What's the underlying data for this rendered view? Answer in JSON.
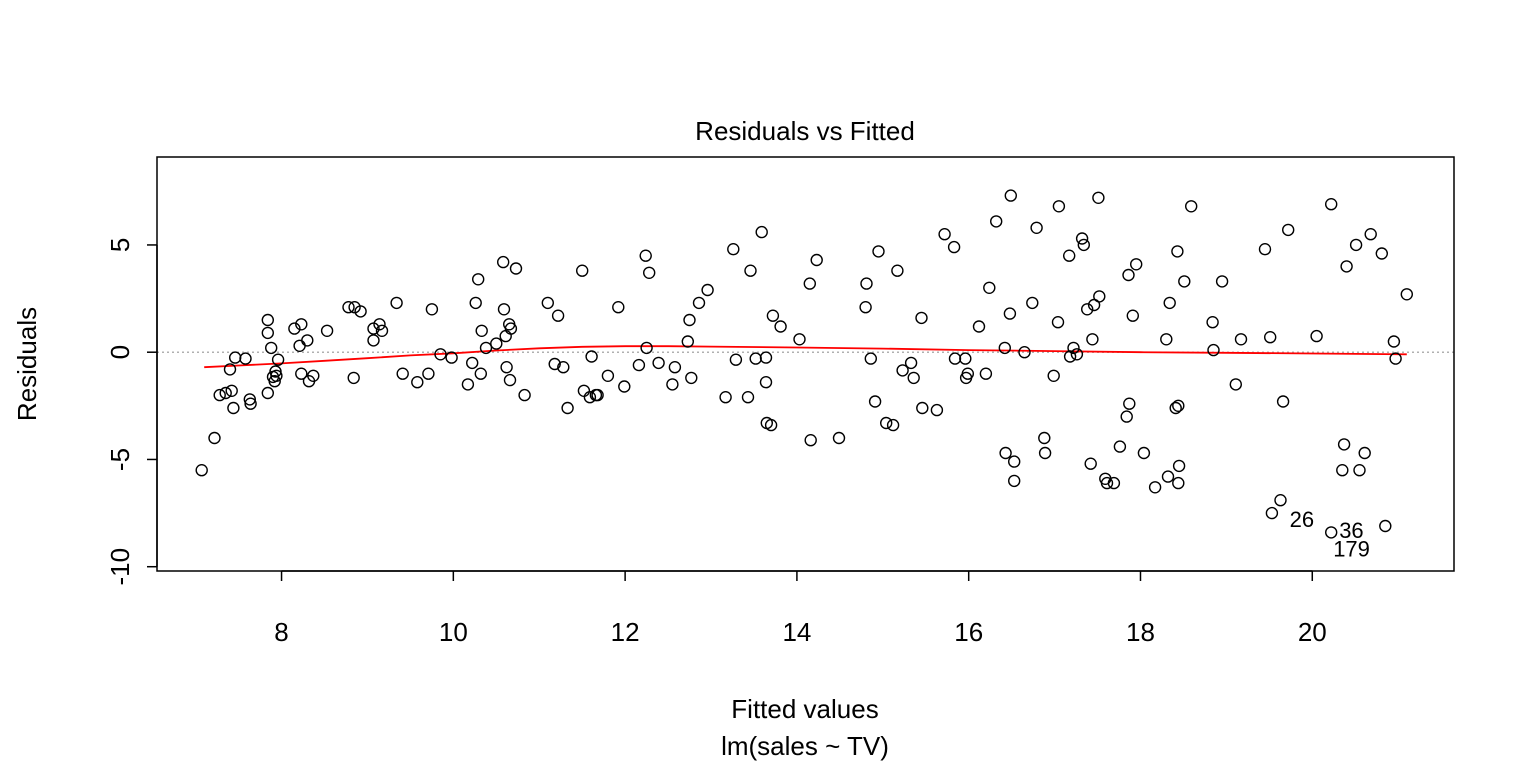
{
  "chart_data": {
    "type": "scatter",
    "title": "Residuals vs Fitted",
    "xlabel": "Fitted values",
    "sublabel": "lm(sales ~ TV)",
    "ylabel": "Residuals",
    "xlim": [
      6.55,
      21.65
    ],
    "ylim": [
      -10.2,
      9.1
    ],
    "xticks": [
      8,
      10,
      12,
      14,
      16,
      18,
      20
    ],
    "yticks": [
      -10,
      -5,
      0,
      5
    ],
    "grid": false,
    "reference_line": {
      "y": 0,
      "style": "dotted",
      "color": "#b0b0b0"
    },
    "colors": {
      "points": "#000000",
      "smooth": "#ff0000",
      "box": "#000000"
    },
    "smooth": {
      "x": [
        7.1,
        7.5,
        8.0,
        8.5,
        9.0,
        9.5,
        10.0,
        10.5,
        11.0,
        11.5,
        12.0,
        12.5,
        13.0,
        14.0,
        15.0,
        16.0,
        17.0,
        18.0,
        19.0,
        20.0,
        20.5,
        21.1
      ],
      "y": [
        -0.7,
        -0.62,
        -0.52,
        -0.4,
        -0.28,
        -0.15,
        -0.05,
        0.08,
        0.18,
        0.25,
        0.28,
        0.28,
        0.26,
        0.22,
        0.17,
        0.1,
        0.05,
        0.0,
        -0.03,
        -0.06,
        -0.08,
        -0.1
      ]
    },
    "labeled_points": [
      {
        "label": "26",
        "x": 19.62,
        "y": -7.6
      },
      {
        "label": "36",
        "x": 20.22,
        "y": -8.3
      },
      {
        "label": "179",
        "x": 20.22,
        "y": -8.6
      }
    ],
    "points": [
      [
        7.07,
        -5.5
      ],
      [
        7.22,
        -4.0
      ],
      [
        7.28,
        -2.0
      ],
      [
        7.35,
        -1.9
      ],
      [
        7.4,
        -0.8
      ],
      [
        7.42,
        -1.8
      ],
      [
        7.44,
        -2.6
      ],
      [
        7.46,
        -0.25
      ],
      [
        7.58,
        -0.3
      ],
      [
        7.63,
        -2.2
      ],
      [
        7.64,
        -2.4
      ],
      [
        7.84,
        1.5
      ],
      [
        7.84,
        0.9
      ],
      [
        7.84,
        -1.9
      ],
      [
        7.88,
        0.2
      ],
      [
        7.9,
        -1.15
      ],
      [
        7.92,
        -1.35
      ],
      [
        7.93,
        -0.9
      ],
      [
        7.94,
        -1.1
      ],
      [
        7.96,
        -0.35
      ],
      [
        8.15,
        1.1
      ],
      [
        8.21,
        0.3
      ],
      [
        8.23,
        1.3
      ],
      [
        8.23,
        -1.0
      ],
      [
        8.3,
        0.55
      ],
      [
        8.32,
        -1.35
      ],
      [
        8.37,
        -1.1
      ],
      [
        8.53,
        1.0
      ],
      [
        8.78,
        2.1
      ],
      [
        8.85,
        2.1
      ],
      [
        8.84,
        -1.2
      ],
      [
        8.92,
        1.9
      ],
      [
        9.07,
        1.1
      ],
      [
        9.07,
        0.55
      ],
      [
        9.14,
        1.3
      ],
      [
        9.17,
        1.0
      ],
      [
        9.34,
        2.3
      ],
      [
        9.41,
        -1.0
      ],
      [
        9.58,
        -1.4
      ],
      [
        9.71,
        -1.0
      ],
      [
        9.75,
        2.0
      ],
      [
        9.85,
        -0.1
      ],
      [
        9.98,
        -0.25
      ],
      [
        10.17,
        -1.5
      ],
      [
        10.22,
        -0.5
      ],
      [
        10.26,
        2.3
      ],
      [
        10.29,
        3.4
      ],
      [
        10.32,
        -1.0
      ],
      [
        10.33,
        1.0
      ],
      [
        10.38,
        0.2
      ],
      [
        10.5,
        0.4
      ],
      [
        10.58,
        4.2
      ],
      [
        10.59,
        2.0
      ],
      [
        10.61,
        0.75
      ],
      [
        10.62,
        -0.7
      ],
      [
        10.65,
        1.3
      ],
      [
        10.67,
        1.1
      ],
      [
        10.66,
        -1.3
      ],
      [
        10.73,
        3.9
      ],
      [
        10.83,
        -2.0
      ],
      [
        11.1,
        2.3
      ],
      [
        11.18,
        -0.55
      ],
      [
        11.22,
        1.7
      ],
      [
        11.28,
        -0.7
      ],
      [
        11.33,
        -2.6
      ],
      [
        11.5,
        3.8
      ],
      [
        11.52,
        -1.8
      ],
      [
        11.59,
        -2.1
      ],
      [
        11.61,
        -0.2
      ],
      [
        11.66,
        -2.0
      ],
      [
        11.68,
        -2.0
      ],
      [
        11.8,
        -1.1
      ],
      [
        11.92,
        2.1
      ],
      [
        11.99,
        -1.6
      ],
      [
        12.16,
        -0.6
      ],
      [
        12.24,
        4.5
      ],
      [
        12.25,
        0.2
      ],
      [
        12.28,
        3.7
      ],
      [
        12.39,
        -0.5
      ],
      [
        12.55,
        -1.5
      ],
      [
        12.58,
        -0.7
      ],
      [
        12.73,
        0.5
      ],
      [
        12.75,
        1.5
      ],
      [
        12.77,
        -1.2
      ],
      [
        12.86,
        2.3
      ],
      [
        12.96,
        2.9
      ],
      [
        13.17,
        -2.1
      ],
      [
        13.26,
        4.8
      ],
      [
        13.29,
        -0.35
      ],
      [
        13.43,
        -2.1
      ],
      [
        13.46,
        3.8
      ],
      [
        13.52,
        -0.3
      ],
      [
        13.59,
        5.6
      ],
      [
        13.64,
        -0.25
      ],
      [
        13.64,
        -1.4
      ],
      [
        13.65,
        -3.3
      ],
      [
        13.7,
        -3.4
      ],
      [
        13.72,
        1.7
      ],
      [
        13.81,
        1.2
      ],
      [
        14.03,
        0.6
      ],
      [
        14.15,
        3.2
      ],
      [
        14.16,
        -4.1
      ],
      [
        14.23,
        4.3
      ],
      [
        14.49,
        -4.0
      ],
      [
        14.8,
        2.1
      ],
      [
        14.81,
        3.2
      ],
      [
        14.86,
        -0.3
      ],
      [
        14.91,
        -2.3
      ],
      [
        14.95,
        4.7
      ],
      [
        15.04,
        -3.3
      ],
      [
        15.12,
        -3.4
      ],
      [
        15.17,
        3.8
      ],
      [
        15.23,
        -0.85
      ],
      [
        15.33,
        -0.5
      ],
      [
        15.36,
        -1.2
      ],
      [
        15.45,
        1.6
      ],
      [
        15.46,
        -2.6
      ],
      [
        15.63,
        -2.7
      ],
      [
        15.72,
        5.5
      ],
      [
        15.83,
        4.9
      ],
      [
        15.84,
        -0.3
      ],
      [
        15.96,
        -0.3
      ],
      [
        15.97,
        -1.2
      ],
      [
        15.99,
        -1.0
      ],
      [
        16.12,
        1.2
      ],
      [
        16.2,
        -1.0
      ],
      [
        16.24,
        3.0
      ],
      [
        16.32,
        6.1
      ],
      [
        16.42,
        0.2
      ],
      [
        16.43,
        -4.7
      ],
      [
        16.48,
        1.8
      ],
      [
        16.49,
        7.3
      ],
      [
        16.53,
        -5.1
      ],
      [
        16.53,
        -6.0
      ],
      [
        16.65,
        0.0
      ],
      [
        16.74,
        2.3
      ],
      [
        16.79,
        5.8
      ],
      [
        16.88,
        -4.0
      ],
      [
        16.89,
        -4.7
      ],
      [
        16.99,
        -1.1
      ],
      [
        17.04,
        1.4
      ],
      [
        17.05,
        6.8
      ],
      [
        17.17,
        4.5
      ],
      [
        17.18,
        -0.2
      ],
      [
        17.22,
        0.2
      ],
      [
        17.26,
        -0.1
      ],
      [
        17.32,
        5.3
      ],
      [
        17.34,
        5.0
      ],
      [
        17.38,
        2.0
      ],
      [
        17.42,
        -5.2
      ],
      [
        17.44,
        0.6
      ],
      [
        17.46,
        2.2
      ],
      [
        17.51,
        7.2
      ],
      [
        17.52,
        2.6
      ],
      [
        17.59,
        -5.9
      ],
      [
        17.61,
        -6.1
      ],
      [
        17.69,
        -6.1
      ],
      [
        17.76,
        -4.4
      ],
      [
        17.84,
        -3.0
      ],
      [
        17.86,
        3.6
      ],
      [
        17.87,
        -2.4
      ],
      [
        17.91,
        1.7
      ],
      [
        17.95,
        4.1
      ],
      [
        18.04,
        -4.7
      ],
      [
        18.17,
        -6.3
      ],
      [
        18.3,
        0.6
      ],
      [
        18.32,
        -5.8
      ],
      [
        18.34,
        2.3
      ],
      [
        18.41,
        -2.6
      ],
      [
        18.43,
        4.7
      ],
      [
        18.44,
        -2.5
      ],
      [
        18.44,
        -6.1
      ],
      [
        18.45,
        -5.3
      ],
      [
        18.51,
        3.3
      ],
      [
        18.59,
        6.8
      ],
      [
        18.84,
        1.4
      ],
      [
        18.85,
        0.1
      ],
      [
        18.95,
        3.3
      ],
      [
        19.11,
        -1.5
      ],
      [
        19.17,
        0.6
      ],
      [
        19.45,
        4.8
      ],
      [
        19.51,
        0.7
      ],
      [
        19.53,
        -7.5
      ],
      [
        19.63,
        -6.9
      ],
      [
        19.66,
        -2.3
      ],
      [
        19.72,
        5.7
      ],
      [
        20.05,
        0.75
      ],
      [
        20.22,
        6.9
      ],
      [
        20.22,
        -8.4
      ],
      [
        20.35,
        -5.5
      ],
      [
        20.37,
        -4.3
      ],
      [
        20.4,
        4.0
      ],
      [
        20.51,
        5.0
      ],
      [
        20.55,
        -5.5
      ],
      [
        20.61,
        -4.7
      ],
      [
        20.68,
        5.5
      ],
      [
        20.81,
        4.6
      ],
      [
        20.85,
        -8.1
      ],
      [
        20.95,
        0.5
      ],
      [
        20.97,
        -0.3
      ],
      [
        21.1,
        2.7
      ]
    ]
  }
}
